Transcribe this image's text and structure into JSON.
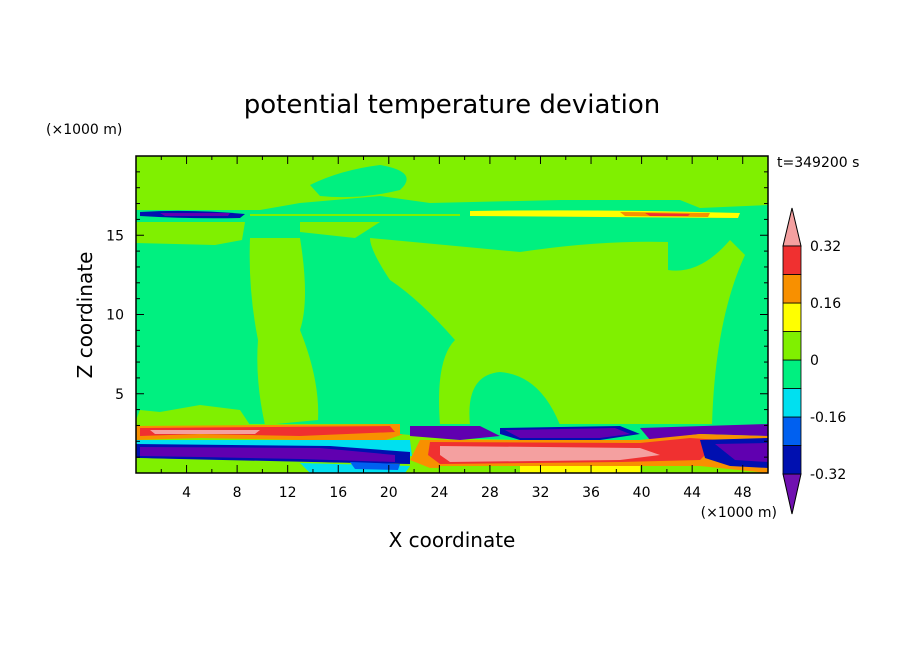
{
  "title": "potential temperature deviation",
  "time_label": "t=349200 s",
  "colors": {
    "pink": "#f4a0a0",
    "red": "#f03030",
    "orange": "#f89000",
    "yellow": "#ffff00",
    "lightgreen": "#80f000",
    "green": "#00f080",
    "cyan": "#00e0f0",
    "blue": "#0060f0",
    "navy": "#0010b0",
    "purple": "#6000b0",
    "darkpurple": "#7010b0"
  },
  "chart_data": {
    "type": "heatmap",
    "title": "potential temperature deviation",
    "xlabel": "X coordinate",
    "ylabel": "Z coordinate",
    "x_unit": "(×1000 m)",
    "y_unit": "(×1000 m)",
    "xlim": [
      0,
      50
    ],
    "ylim": [
      0,
      20
    ],
    "x_ticks": [
      "4",
      "8",
      "12",
      "16",
      "20",
      "24",
      "28",
      "32",
      "36",
      "40",
      "44",
      "48"
    ],
    "x_tick_values": [
      4,
      8,
      12,
      16,
      20,
      24,
      28,
      32,
      36,
      40,
      44,
      48
    ],
    "y_ticks": [
      "5",
      "10",
      "15"
    ],
    "y_tick_values": [
      5,
      10,
      15
    ],
    "colorbar": {
      "labels": [
        "0.32",
        "0.16",
        "0",
        "-0.16",
        "-0.32"
      ],
      "label_values": [
        0.32,
        0.16,
        0,
        -0.16,
        -0.32
      ],
      "levels": [
        -0.4,
        -0.32,
        -0.24,
        -0.16,
        -0.08,
        0,
        0.08,
        0.16,
        0.24,
        0.32,
        0.4
      ],
      "colors_bottom_to_top": [
        "#7010b0",
        "#0010b0",
        "#0060f0",
        "#00e0f0",
        "#00f080",
        "#80f000",
        "#ffff00",
        "#f89000",
        "#f03030",
        "#f4a0a0"
      ]
    }
  }
}
